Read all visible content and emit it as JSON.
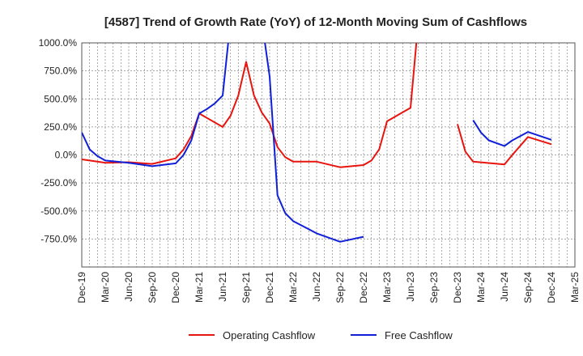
{
  "chart_data": {
    "type": "line",
    "title": "[4587]  Trend of Growth Rate (YoY) of 12-Month Moving Sum of Cashflows",
    "xlabel": "",
    "ylabel": "",
    "ylim": [
      -1000,
      1000
    ],
    "y_ticks": [
      1000,
      750,
      500,
      250,
      0,
      -250,
      -500,
      -750
    ],
    "y_tick_labels": [
      "1000.0%",
      "750.0%",
      "500.0%",
      "250.0%",
      "0.0%",
      "-250.0%",
      "-500.0%",
      "-750.0%"
    ],
    "x_tick_labels": [
      "Dec-19",
      "Mar-20",
      "Jun-20",
      "Sep-20",
      "Dec-20",
      "Mar-21",
      "Jun-21",
      "Sep-21",
      "Dec-21",
      "Mar-22",
      "Jun-22",
      "Sep-22",
      "Dec-22",
      "Mar-23",
      "Jun-23",
      "Sep-23",
      "Dec-23",
      "Mar-24",
      "Jun-24",
      "Sep-24",
      "Dec-24",
      "Mar-25"
    ],
    "x_start": "2019-12",
    "x_end": "2025-03",
    "grid": true,
    "legend_position": "bottom",
    "series": [
      {
        "name": "Operating Cashflow",
        "color": "#e8140f",
        "points": [
          [
            "2019-12",
            -40
          ],
          [
            "2020-01",
            -50
          ],
          [
            "2020-02",
            -60
          ],
          [
            "2020-03",
            -70
          ],
          [
            "2020-06",
            -65
          ],
          [
            "2020-09",
            -80
          ],
          [
            "2020-12",
            -30
          ],
          [
            "2021-01",
            50
          ],
          [
            "2021-02",
            170
          ],
          [
            "2021-03",
            370
          ],
          [
            "2021-06",
            250
          ],
          [
            "2021-07",
            350
          ],
          [
            "2021-08",
            530
          ],
          [
            "2021-09",
            830
          ],
          [
            "2021-10",
            530
          ],
          [
            "2021-11",
            380
          ],
          [
            "2021-12",
            280
          ],
          [
            "2022-01",
            70
          ],
          [
            "2022-02",
            -20
          ],
          [
            "2022-03",
            -60
          ],
          [
            "2022-06",
            -60
          ],
          [
            "2022-09",
            -110
          ],
          [
            "2022-12",
            -90
          ],
          [
            "2023-01",
            -50
          ],
          [
            "2023-02",
            50
          ],
          [
            "2023-03",
            300
          ],
          [
            "2023-06",
            420
          ],
          [
            "2023-07",
            1200
          ],
          null,
          [
            "2023-12",
            275
          ],
          [
            "2024-01",
            30
          ],
          [
            "2024-02",
            -60
          ],
          [
            "2024-06",
            -85
          ],
          [
            "2024-07",
            0
          ],
          [
            "2024-09",
            160
          ],
          [
            "2024-12",
            95
          ]
        ]
      },
      {
        "name": "Free Cashflow",
        "color": "#1020d8",
        "points": [
          [
            "2019-12",
            200
          ],
          [
            "2020-01",
            50
          ],
          [
            "2020-02",
            -10
          ],
          [
            "2020-03",
            -50
          ],
          [
            "2020-06",
            -70
          ],
          [
            "2020-09",
            -100
          ],
          [
            "2020-12",
            -75
          ],
          [
            "2021-01",
            0
          ],
          [
            "2021-02",
            130
          ],
          [
            "2021-03",
            370
          ],
          [
            "2021-04",
            410
          ],
          [
            "2021-05",
            460
          ],
          [
            "2021-06",
            530
          ],
          [
            "2021-07",
            1200
          ],
          null,
          [
            "2021-11",
            1200
          ],
          [
            "2021-12",
            700
          ],
          [
            "2022-01",
            -360
          ],
          [
            "2022-02",
            -520
          ],
          [
            "2022-03",
            -590
          ],
          [
            "2022-06",
            -700
          ],
          [
            "2022-09",
            -775
          ],
          [
            "2022-12",
            -730
          ],
          null,
          [
            "2024-02",
            310
          ],
          [
            "2024-03",
            200
          ],
          [
            "2024-04",
            130
          ],
          [
            "2024-06",
            80
          ],
          [
            "2024-07",
            130
          ],
          [
            "2024-09",
            205
          ],
          [
            "2024-12",
            135
          ]
        ]
      }
    ]
  }
}
